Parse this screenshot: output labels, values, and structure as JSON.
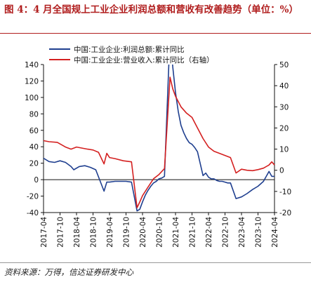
{
  "figure": {
    "title": "图 4：4 月全国规上工业企业利润总额和营收有改善趋势（单位：%）",
    "source": "资料来源：万得，信达证券研发中心"
  },
  "chart_data": {
    "type": "line",
    "title": "",
    "legend_position": "top-left",
    "left_axis": {
      "ylim": [
        -40,
        140
      ],
      "ticks": [
        -40,
        -20,
        0,
        20,
        40,
        60,
        80,
        100,
        120,
        140
      ]
    },
    "right_axis": {
      "ylim": [
        -20,
        50
      ],
      "ticks": [
        -20,
        -10,
        0,
        10,
        20,
        30,
        40,
        50
      ]
    },
    "x_range": [
      "2017-04",
      "2024-04"
    ],
    "x_ticks": [
      "2017-04",
      "2017-10",
      "2018-04",
      "2018-10",
      "2019-04",
      "2019-10",
      "2020-04",
      "2020-10",
      "2021-04",
      "2021-10",
      "2022-04",
      "2022-10",
      "2023-04",
      "2023-10",
      "2024-04"
    ],
    "grid": false,
    "series": [
      {
        "name": "中国:工业企业:利润总额:累计同比",
        "axis": "left",
        "color": "#1f3f8f",
        "points": [
          [
            "2017-04",
            26
          ],
          [
            "2017-06",
            22
          ],
          [
            "2017-08",
            21
          ],
          [
            "2017-10",
            23
          ],
          [
            "2017-12",
            21
          ],
          [
            "2018-02",
            16
          ],
          [
            "2018-03",
            12
          ],
          [
            "2018-05",
            16
          ],
          [
            "2018-07",
            17
          ],
          [
            "2018-09",
            15
          ],
          [
            "2018-11",
            12
          ],
          [
            "2019-02",
            -14
          ],
          [
            "2019-03",
            -3
          ],
          [
            "2019-04",
            -3
          ],
          [
            "2019-06",
            -2
          ],
          [
            "2019-08",
            -2
          ],
          [
            "2019-10",
            -2
          ],
          [
            "2019-12",
            -3
          ],
          [
            "2020-02",
            -38
          ],
          [
            "2020-03",
            -36
          ],
          [
            "2020-04",
            -27
          ],
          [
            "2020-05",
            -19
          ],
          [
            "2020-06",
            -13
          ],
          [
            "2020-07",
            -8
          ],
          [
            "2020-08",
            -4
          ],
          [
            "2020-09",
            -2
          ],
          [
            "2020-10",
            1
          ],
          [
            "2020-11",
            2
          ],
          [
            "2020-12",
            4
          ],
          [
            "2021-02",
            178
          ],
          [
            "2021-03",
            137
          ],
          [
            "2021-04",
            106
          ],
          [
            "2021-05",
            83
          ],
          [
            "2021-06",
            66
          ],
          [
            "2021-07",
            57
          ],
          [
            "2021-08",
            50
          ],
          [
            "2021-09",
            45
          ],
          [
            "2021-10",
            43
          ],
          [
            "2021-11",
            39
          ],
          [
            "2021-12",
            34
          ],
          [
            "2022-02",
            5
          ],
          [
            "2022-03",
            8
          ],
          [
            "2022-04",
            3
          ],
          [
            "2022-05",
            1
          ],
          [
            "2022-06",
            1
          ],
          [
            "2022-07",
            -1
          ],
          [
            "2022-08",
            -2
          ],
          [
            "2022-09",
            -2
          ],
          [
            "2022-10",
            -3
          ],
          [
            "2022-11",
            -4
          ],
          [
            "2022-12",
            -4
          ],
          [
            "2023-02",
            -23
          ],
          [
            "2023-04",
            -21
          ],
          [
            "2023-06",
            -17
          ],
          [
            "2023-08",
            -12
          ],
          [
            "2023-10",
            -8
          ],
          [
            "2023-12",
            -2
          ],
          [
            "2024-02",
            10
          ],
          [
            "2024-03",
            4
          ],
          [
            "2024-04",
            4
          ]
        ]
      },
      {
        "name": "中国:工业企业:营业收入:累计同比（右轴）",
        "axis": "right",
        "color": "#d42020",
        "points": [
          [
            "2017-04",
            14
          ],
          [
            "2017-06",
            13.5
          ],
          [
            "2017-09",
            13.2
          ],
          [
            "2017-12",
            11
          ],
          [
            "2018-02",
            10
          ],
          [
            "2018-04",
            11
          ],
          [
            "2018-06",
            10.5
          ],
          [
            "2018-08",
            10
          ],
          [
            "2018-10",
            9.6
          ],
          [
            "2018-12",
            8.5
          ],
          [
            "2019-02",
            3
          ],
          [
            "2019-03",
            8
          ],
          [
            "2019-04",
            6
          ],
          [
            "2019-06",
            5.5
          ],
          [
            "2019-09",
            4.5
          ],
          [
            "2019-12",
            4
          ],
          [
            "2020-02",
            -17.7
          ],
          [
            "2020-03",
            -15
          ],
          [
            "2020-04",
            -12
          ],
          [
            "2020-06",
            -8
          ],
          [
            "2020-08",
            -4
          ],
          [
            "2020-10",
            -2
          ],
          [
            "2020-12",
            0.8
          ],
          [
            "2021-02",
            44
          ],
          [
            "2021-03",
            38.5
          ],
          [
            "2021-04",
            35
          ],
          [
            "2021-06",
            30
          ],
          [
            "2021-08",
            27
          ],
          [
            "2021-10",
            25
          ],
          [
            "2021-12",
            20
          ],
          [
            "2022-02",
            15
          ],
          [
            "2022-04",
            11
          ],
          [
            "2022-06",
            9
          ],
          [
            "2022-08",
            8
          ],
          [
            "2022-10",
            7
          ],
          [
            "2022-12",
            6
          ],
          [
            "2023-02",
            -1.3
          ],
          [
            "2023-04",
            0.5
          ],
          [
            "2023-06",
            0
          ],
          [
            "2023-08",
            -0.2
          ],
          [
            "2023-10",
            0.3
          ],
          [
            "2023-12",
            1
          ],
          [
            "2024-02",
            2.5
          ],
          [
            "2024-03",
            4
          ],
          [
            "2024-04",
            2.5
          ]
        ]
      }
    ]
  }
}
